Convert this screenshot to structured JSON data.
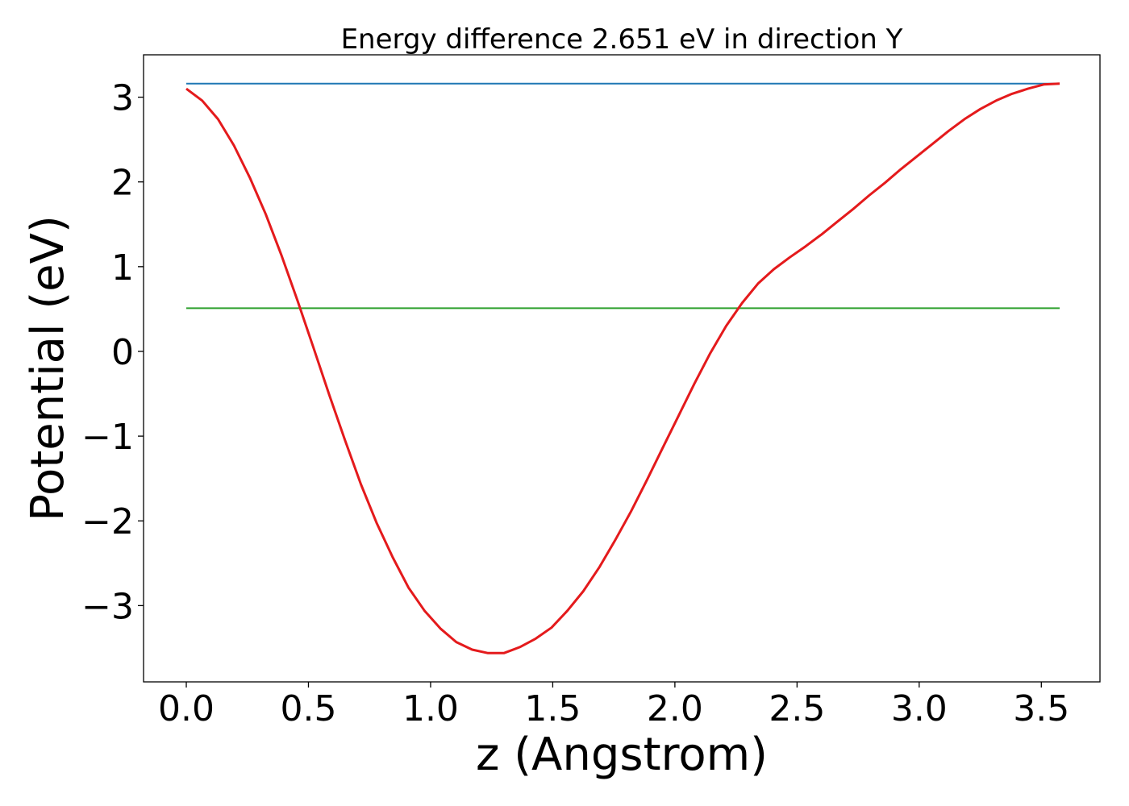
{
  "chart_data": {
    "type": "line",
    "title": "Energy difference 2.651 eV in direction Y",
    "xlabel": "z (Angstrom)",
    "ylabel": "Potential (eV)",
    "xlim": [
      -0.175,
      3.74
    ],
    "ylim": [
      -3.9,
      3.5
    ],
    "xticks": [
      0.0,
      0.5,
      1.0,
      1.5,
      2.0,
      2.5,
      3.0,
      3.5
    ],
    "xtick_labels": [
      "0.0",
      "0.5",
      "1.0",
      "1.5",
      "2.0",
      "2.5",
      "3.0",
      "3.5"
    ],
    "yticks": [
      3,
      2,
      1,
      0,
      -1,
      -2,
      -3
    ],
    "ytick_labels": [
      "3",
      "2",
      "1",
      "0",
      "−1",
      "−2",
      "−3"
    ],
    "grid": false,
    "legend": "none",
    "series": [
      {
        "color": "#e41a1c",
        "x": [
          0.0,
          0.065,
          0.13,
          0.195,
          0.26,
          0.325,
          0.39,
          0.455,
          0.52,
          0.585,
          0.65,
          0.715,
          0.78,
          0.845,
          0.91,
          0.975,
          1.04,
          1.105,
          1.17,
          1.235,
          1.3,
          1.365,
          1.43,
          1.495,
          1.56,
          1.625,
          1.69,
          1.755,
          1.82,
          1.885,
          1.95,
          2.015,
          2.08,
          2.145,
          2.21,
          2.275,
          2.34,
          2.405,
          2.47,
          2.535,
          2.6,
          2.665,
          2.73,
          2.795,
          2.86,
          2.925,
          2.99,
          3.055,
          3.12,
          3.185,
          3.25,
          3.315,
          3.38,
          3.445,
          3.51,
          3.575
        ],
        "values": [
          3.1,
          2.96,
          2.74,
          2.43,
          2.05,
          1.62,
          1.13,
          0.6,
          0.05,
          -0.51,
          -1.05,
          -1.57,
          -2.03,
          -2.43,
          -2.79,
          -3.06,
          -3.27,
          -3.43,
          -3.52,
          -3.56,
          -3.56,
          -3.49,
          -3.39,
          -3.26,
          -3.06,
          -2.83,
          -2.55,
          -2.23,
          -1.89,
          -1.52,
          -1.14,
          -0.76,
          -0.38,
          -0.02,
          0.3,
          0.57,
          0.8,
          0.97,
          1.11,
          1.24,
          1.38,
          1.53,
          1.68,
          1.84,
          1.99,
          2.15,
          2.3,
          2.45,
          2.6,
          2.74,
          2.86,
          2.96,
          3.04,
          3.1,
          3.15,
          3.16
        ]
      },
      {
        "color": "#1f77b4",
        "x": [
          0.0,
          3.575
        ],
        "values": [
          3.16,
          3.16
        ]
      },
      {
        "color": "#2ca02c",
        "x": [
          0.0,
          3.575
        ],
        "values": [
          0.51,
          0.51
        ]
      }
    ]
  }
}
